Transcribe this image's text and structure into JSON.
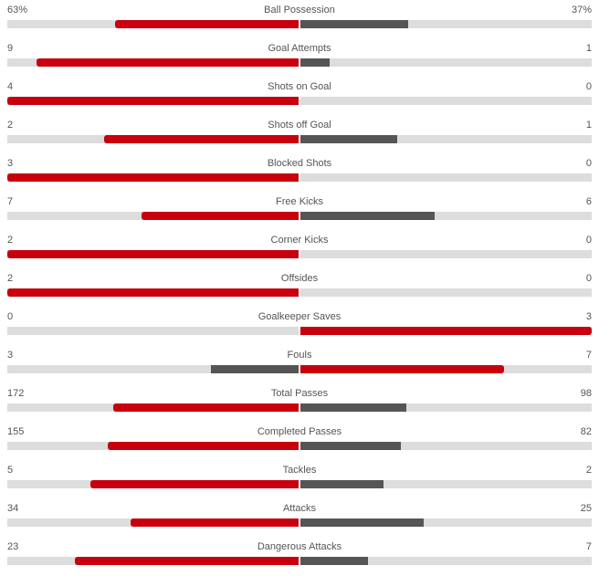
{
  "colors": {
    "leading": "#c8000e",
    "trailing": "#555555",
    "track": "#dddddd"
  },
  "stats": [
    {
      "name": "Ball Possession",
      "home": "63%",
      "away": "37%",
      "home_share": 0.63,
      "away_share": 0.37
    },
    {
      "name": "Goal Attempts",
      "home": "9",
      "away": "1",
      "home_share": 0.9,
      "away_share": 0.1
    },
    {
      "name": "Shots on Goal",
      "home": "4",
      "away": "0",
      "home_share": 1.0,
      "away_share": 0.0
    },
    {
      "name": "Shots off Goal",
      "home": "2",
      "away": "1",
      "home_share": 0.6667,
      "away_share": 0.3333
    },
    {
      "name": "Blocked Shots",
      "home": "3",
      "away": "0",
      "home_share": 1.0,
      "away_share": 0.0
    },
    {
      "name": "Free Kicks",
      "home": "7",
      "away": "6",
      "home_share": 0.5385,
      "away_share": 0.4615
    },
    {
      "name": "Corner Kicks",
      "home": "2",
      "away": "0",
      "home_share": 1.0,
      "away_share": 0.0
    },
    {
      "name": "Offsides",
      "home": "2",
      "away": "0",
      "home_share": 1.0,
      "away_share": 0.0
    },
    {
      "name": "Goalkeeper Saves",
      "home": "0",
      "away": "3",
      "home_share": 0.0,
      "away_share": 1.0
    },
    {
      "name": "Fouls",
      "home": "3",
      "away": "7",
      "home_share": 0.3,
      "away_share": 0.7
    },
    {
      "name": "Total Passes",
      "home": "172",
      "away": "98",
      "home_share": 0.637,
      "away_share": 0.363
    },
    {
      "name": "Completed Passes",
      "home": "155",
      "away": "82",
      "home_share": 0.654,
      "away_share": 0.346
    },
    {
      "name": "Tackles",
      "home": "5",
      "away": "2",
      "home_share": 0.7143,
      "away_share": 0.2857
    },
    {
      "name": "Attacks",
      "home": "34",
      "away": "25",
      "home_share": 0.5763,
      "away_share": 0.4237
    },
    {
      "name": "Dangerous Attacks",
      "home": "23",
      "away": "7",
      "home_share": 0.7667,
      "away_share": 0.2333
    }
  ]
}
